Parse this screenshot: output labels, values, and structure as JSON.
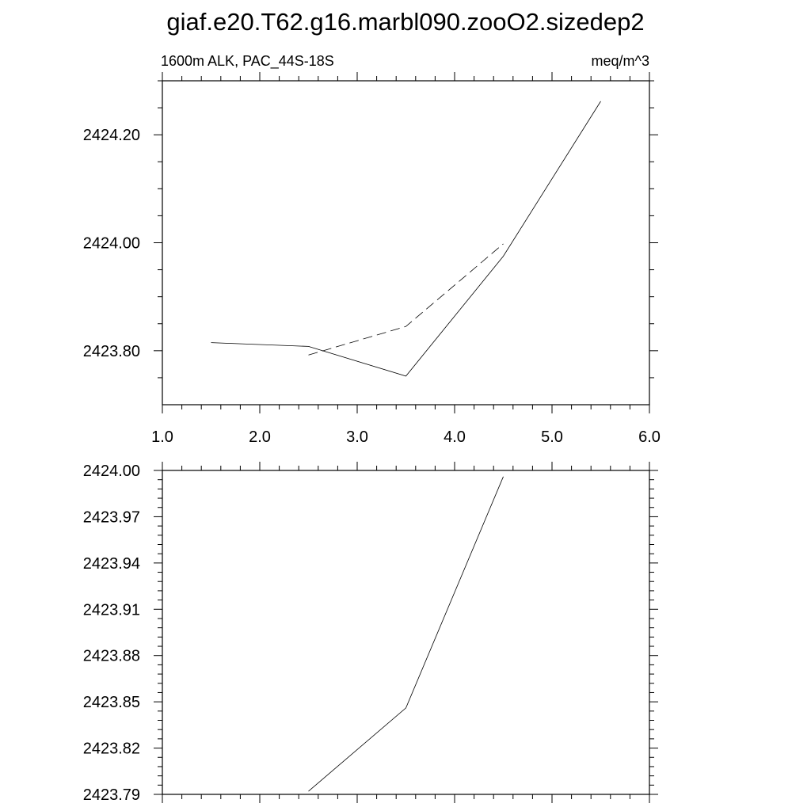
{
  "title": "giaf.e20.T62.g16.marbl090.zooO2.sizedep2",
  "chart_data": [
    {
      "type": "line",
      "left_label": "1600m ALK, PAC_44S-18S",
      "right_label": "meq/m^3",
      "xlim": [
        1.0,
        6.0
      ],
      "ylim": [
        2423.7,
        2424.3
      ],
      "x_ticks": [
        1.0,
        2.0,
        3.0,
        4.0,
        5.0,
        6.0
      ],
      "x_tick_labels": [
        "1.0",
        "2.0",
        "3.0",
        "4.0",
        "5.0",
        "6.0"
      ],
      "y_ticks": [
        2423.8,
        2424.0,
        2424.2
      ],
      "y_tick_labels": [
        "2423.80",
        "2424.00",
        "2424.20"
      ],
      "grid": false,
      "series": [
        {
          "style": "solid",
          "x": [
            1.5,
            2.5,
            3.5,
            4.5,
            5.5
          ],
          "y": [
            2423.815,
            2423.808,
            2423.753,
            2423.975,
            2424.262
          ]
        },
        {
          "style": "dashed",
          "x": [
            2.5,
            3.5,
            4.5
          ],
          "y": [
            2423.792,
            2423.845,
            2423.998
          ]
        }
      ]
    },
    {
      "type": "line",
      "xlim": [
        1.0,
        6.0
      ],
      "ylim": [
        2423.79,
        2424.0
      ],
      "x_ticks": [
        1.0,
        2.0,
        3.0,
        4.0,
        5.0,
        6.0
      ],
      "y_ticks": [
        2423.79,
        2423.82,
        2423.85,
        2423.88,
        2423.91,
        2423.94,
        2423.97,
        2424.0
      ],
      "y_tick_labels": [
        "2423.79",
        "2423.82",
        "2423.85",
        "2423.88",
        "2423.91",
        "2423.94",
        "2423.97",
        "2424.00"
      ],
      "grid": false,
      "series": [
        {
          "style": "solid",
          "x": [
            2.5,
            3.5,
            4.5
          ],
          "y": [
            2423.792,
            2423.846,
            2423.996
          ]
        }
      ]
    }
  ]
}
